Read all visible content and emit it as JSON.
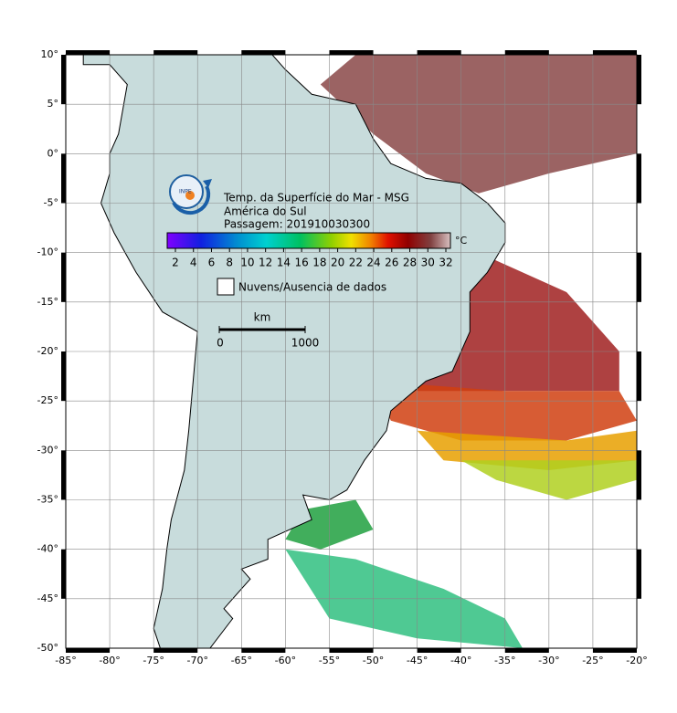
{
  "header": {
    "title": "Temp. da Superfície do Mar - MSG",
    "region": "América do Sul",
    "pass": "Passagem: 201910030300"
  },
  "colorbar": {
    "unit": "°C",
    "ticks": [
      2,
      4,
      6,
      8,
      10,
      12,
      14,
      16,
      18,
      20,
      22,
      24,
      26,
      28,
      30,
      32
    ]
  },
  "legend": {
    "label": "Nuvens/Ausencia de dados"
  },
  "scale": {
    "unit": "km",
    "start": "0",
    "end": "1000"
  },
  "axes": {
    "lon": [
      "-85°",
      "-80°",
      "-75°",
      "-70°",
      "-65°",
      "-60°",
      "-55°",
      "-50°",
      "-45°",
      "-40°",
      "-35°",
      "-30°",
      "-25°",
      "-20°"
    ],
    "lat": [
      "10°",
      "5°",
      "0°",
      "-5°",
      "-10°",
      "-15°",
      "-20°",
      "-25°",
      "-30°",
      "-35°",
      "-40°",
      "-45°",
      "-50°"
    ]
  }
}
